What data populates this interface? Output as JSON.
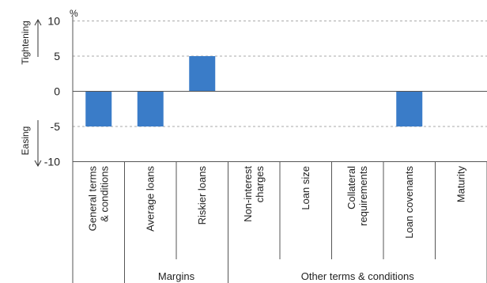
{
  "chart_data": {
    "type": "bar",
    "unit": "%",
    "categories": [
      "General terms & conditions",
      "Average loans",
      "Riskier loans",
      "Non-interest charges",
      "Loan size",
      "Collateral requirements",
      "Loan covenants",
      "Maturity"
    ],
    "category_lines": [
      [
        "General terms",
        "& conditions"
      ],
      [
        "Average loans"
      ],
      [
        "Riskier loans"
      ],
      [
        "Non-interest",
        "charges"
      ],
      [
        "Loan size"
      ],
      [
        "Collateral",
        "requirements"
      ],
      [
        "Loan covenants"
      ],
      [
        "Maturity"
      ]
    ],
    "values": [
      -5,
      -5,
      5,
      0,
      0,
      0,
      -5,
      0
    ],
    "ylim": [
      -10,
      10
    ],
    "yticks": [
      10,
      5,
      0,
      -5,
      -10
    ],
    "grid": true,
    "groups": [
      {
        "label": "",
        "start": 0,
        "end": 0
      },
      {
        "label": "Margins",
        "start": 1,
        "end": 2
      },
      {
        "label": "Other terms & conditions",
        "start": 3,
        "end": 7
      }
    ],
    "annotations": {
      "up": "Tightening",
      "down": "Easing"
    },
    "bar_color": "#3a7cc8",
    "grid_color": "#aaaaaa",
    "axis_color": "#555555"
  }
}
